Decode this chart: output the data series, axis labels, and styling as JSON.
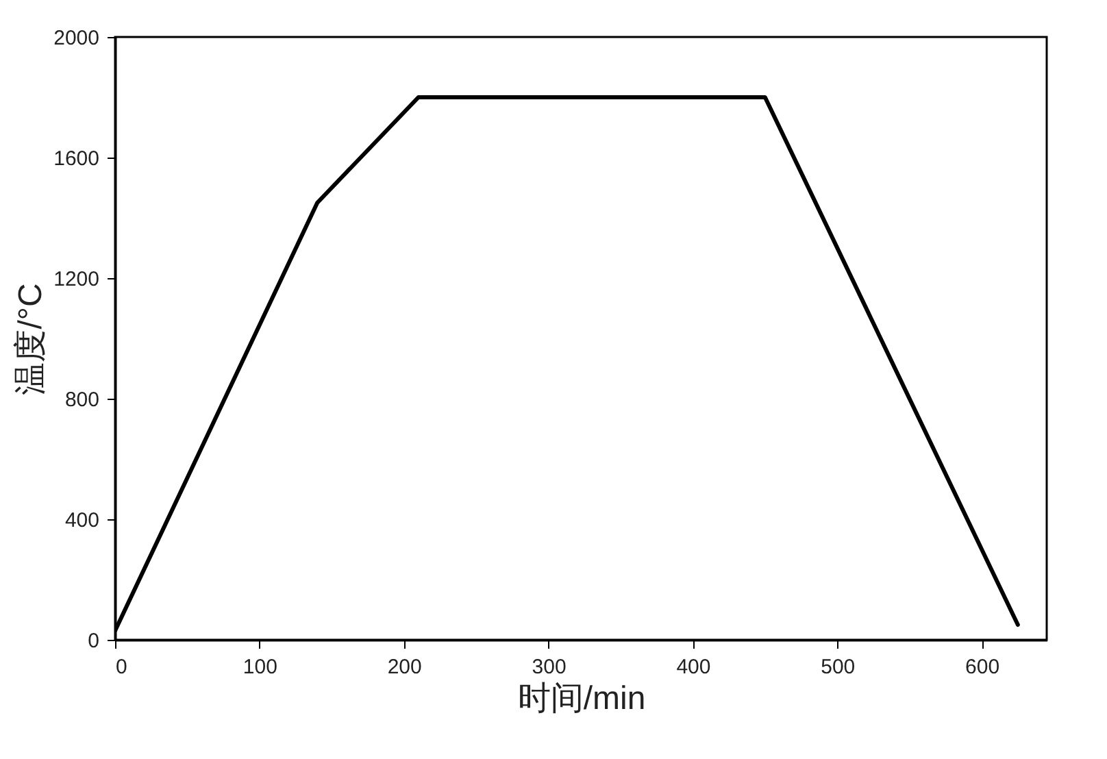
{
  "chart_data": {
    "type": "line",
    "xlabel": "时间/min",
    "ylabel": "温度/°C",
    "x": [
      0,
      140,
      210,
      450,
      625
    ],
    "series": [
      {
        "color": "#000000",
        "values": [
          30,
          1450,
          1800,
          1800,
          50
        ]
      }
    ],
    "xlim": [
      0,
      645
    ],
    "xticks": [
      0,
      100,
      200,
      300,
      400,
      500,
      600
    ],
    "ylim": [
      0,
      2000
    ],
    "yticks": [
      0,
      400,
      800,
      1200,
      1600,
      2000
    ],
    "grid": false,
    "marker": "none",
    "line_style": "solid"
  }
}
